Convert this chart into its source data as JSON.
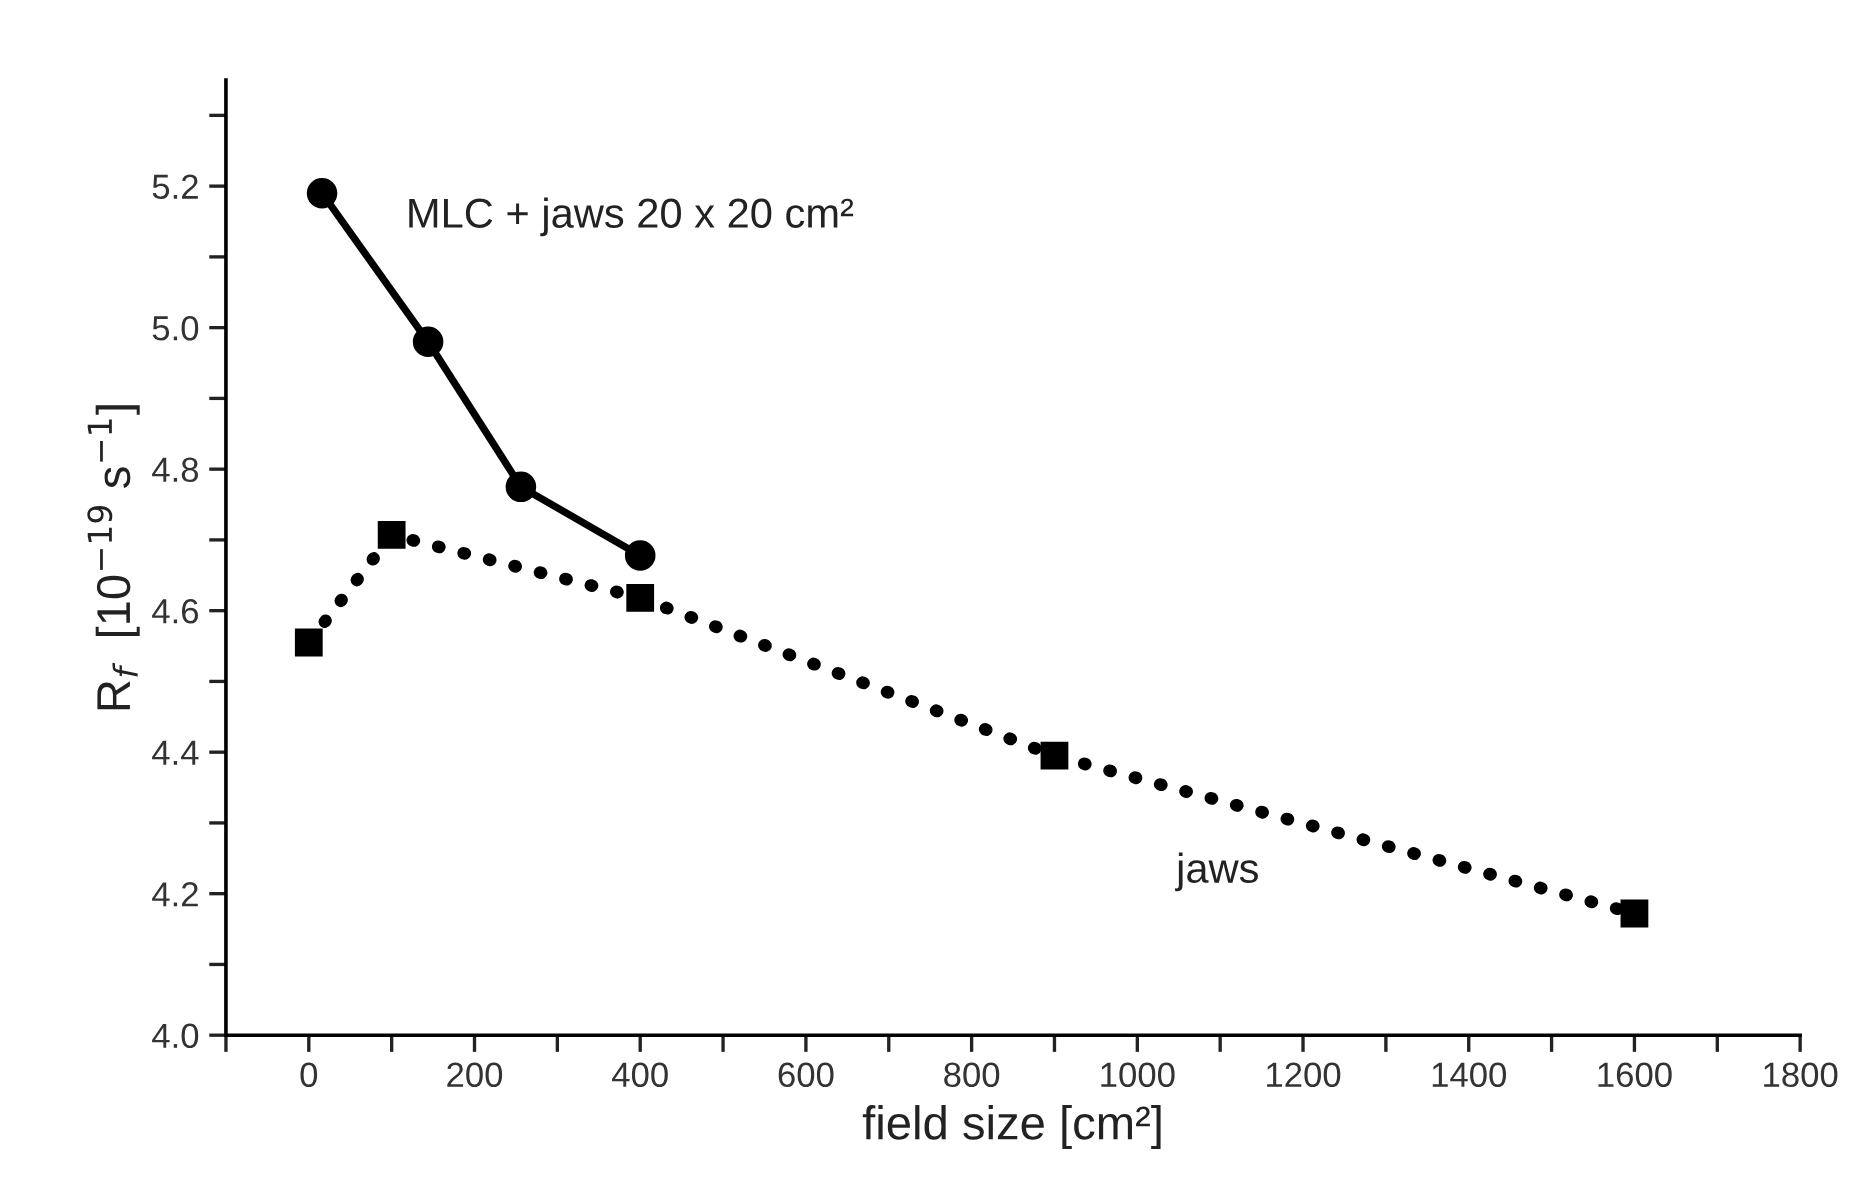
{
  "chart_data": {
    "type": "line",
    "xlabel": "field size [cm²]",
    "ylabel": "R$_{f}$  [10$^{−19}$ s$^{−1}$]",
    "xlim": [
      -100,
      1800
    ],
    "ylim": [
      4.0,
      5.35
    ],
    "xticks": [
      {
        "value": -100,
        "label": null
      },
      0,
      {
        "value": 100,
        "label": null
      },
      200,
      {
        "value": 300,
        "label": null
      },
      400,
      {
        "value": 500,
        "label": null
      },
      600,
      {
        "value": 700,
        "label": null
      },
      800,
      {
        "value": 900,
        "label": null
      },
      1000,
      {
        "value": 1100,
        "label": null
      },
      1200,
      {
        "value": 1300,
        "label": null
      },
      1400,
      {
        "value": 1500,
        "label": null
      },
      1600,
      {
        "value": 1700,
        "label": null
      },
      1800
    ],
    "yticks": [
      {
        "value": 4.0,
        "label": "4.0"
      },
      {
        "value": 4.1,
        "label": null
      },
      4.2,
      {
        "value": 4.3,
        "label": null
      },
      4.4,
      {
        "value": 4.5,
        "label": null
      },
      4.6,
      {
        "value": 4.7,
        "label": null
      },
      4.8,
      {
        "value": 4.9,
        "label": null
      },
      {
        "value": 5.0,
        "label": "5.0"
      },
      {
        "value": 5.1,
        "label": null
      },
      5.2,
      {
        "value": 5.3,
        "label": null
      }
    ],
    "grid": false,
    "legend": false,
    "series": [
      {
        "name": "MLC + jaws 20 x 20 cm²",
        "color": "#000000",
        "marker": "circle",
        "line_style": "solid",
        "x": [
          16,
          144,
          256,
          400
        ],
        "values": [
          5.19,
          4.98,
          4.775,
          4.678
        ]
      },
      {
        "name": "jaws",
        "color": "#000000",
        "marker": "square",
        "line_style": "dotted",
        "x": [
          0,
          100,
          400,
          900,
          1600
        ],
        "values": [
          4.555,
          4.707,
          4.618,
          4.395,
          4.172
        ]
      }
    ]
  }
}
